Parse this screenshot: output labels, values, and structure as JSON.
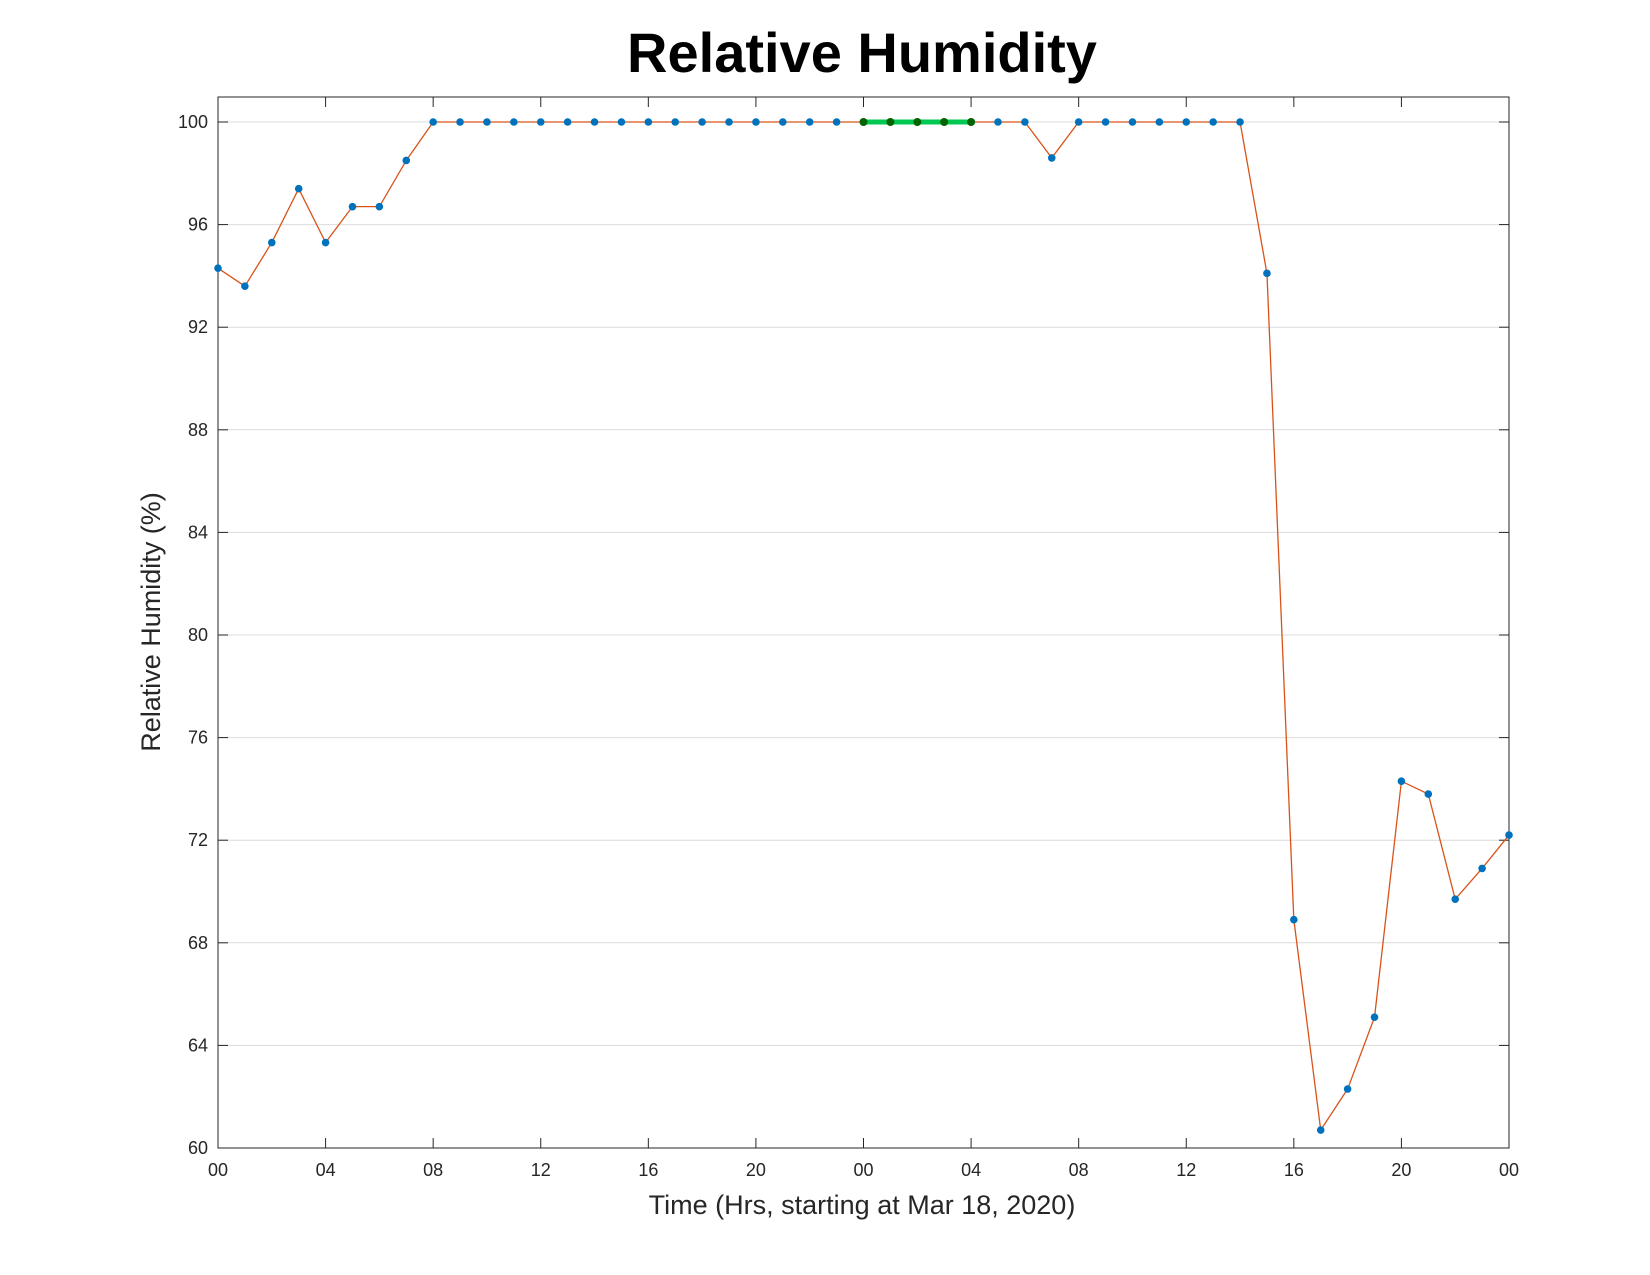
{
  "chart_data": {
    "type": "line",
    "title": "Relative Humidity",
    "xlabel": "Time (Hrs, starting at Mar 18, 2020)",
    "ylabel": "Relative Humidity (%)",
    "xlim": [
      0,
      48
    ],
    "ylim": [
      60,
      100
    ],
    "x_ticks": [
      0,
      4,
      8,
      12,
      16,
      20,
      24,
      28,
      32,
      36,
      40,
      44,
      48
    ],
    "x_tick_labels": [
      "00",
      "04",
      "08",
      "12",
      "16",
      "20",
      "00",
      "04",
      "08",
      "12",
      "16",
      "20",
      "00"
    ],
    "y_ticks": [
      60,
      64,
      68,
      72,
      76,
      80,
      84,
      88,
      92,
      96,
      100
    ],
    "y_tick_labels": [
      "60",
      "64",
      "68",
      "72",
      "76",
      "80",
      "84",
      "88",
      "92",
      "96",
      "100"
    ],
    "grid": "horizontal",
    "colors": {
      "line": "#d95319",
      "marker": "#0072bd",
      "highlight_line": "#00c853",
      "highlight_marker": "#006400",
      "grid": "#dcdcdc",
      "axes": "#262626"
    },
    "series": [
      {
        "x": [
          0,
          1,
          2,
          3,
          4,
          5,
          6,
          7,
          8,
          9,
          10,
          11,
          12,
          13,
          14,
          15,
          16,
          17,
          18,
          19,
          20,
          21,
          22,
          23,
          24,
          25,
          26,
          27,
          28,
          29,
          30,
          31,
          32,
          33,
          34,
          35,
          36,
          37,
          38,
          39,
          40,
          41,
          42,
          43,
          44,
          45,
          46,
          47,
          48
        ],
        "values": [
          94.3,
          93.6,
          95.3,
          97.4,
          95.3,
          96.7,
          96.7,
          98.5,
          100,
          100,
          100,
          100,
          100,
          100,
          100,
          100,
          100,
          100,
          100,
          100,
          100,
          100,
          100,
          100,
          100,
          100,
          100,
          100,
          100,
          100,
          100,
          98.6,
          100,
          100,
          100,
          100,
          100,
          100,
          100,
          94.1,
          68.9,
          60.7,
          62.3,
          65.1,
          74.3,
          73.8,
          69.7,
          70.9,
          72.2
        ]
      }
    ],
    "highlight": {
      "x": [
        24,
        25,
        26,
        27,
        28
      ],
      "values": [
        100,
        100,
        100,
        100,
        100
      ]
    }
  }
}
